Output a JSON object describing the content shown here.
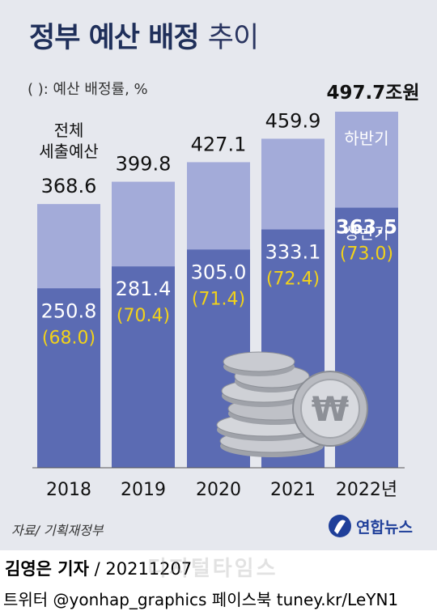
{
  "title_bold": "정부 예산 배정",
  "title_light": "추이",
  "note": "( ): 예산 배정률, %",
  "first_bar_label": [
    "전체",
    "세출예산"
  ],
  "legend": {
    "upper": "하반기",
    "lower": "상반기"
  },
  "unit_suffix": "조원",
  "source": "자료/ 기획재정부",
  "logo_text": "연합뉴스",
  "author_name": "김영은 기자",
  "author_date": "/ 20211207",
  "watermark": "디지털타임스",
  "social": "트위터 @yonhap_graphics  페이스북 tuney.kr/LeYN1",
  "colors": {
    "lower": "#5b6bb3",
    "upper": "#a3abd9",
    "rate": "#f2d21a",
    "bar_text": "#ffffff",
    "axis_text": "#111111"
  },
  "chart_data": {
    "type": "bar",
    "stacked": true,
    "categories": [
      "2018",
      "2019",
      "2020",
      "2021",
      "2022년"
    ],
    "totals": [
      368.6,
      399.8,
      427.1,
      459.9,
      497.7
    ],
    "total_labels": [
      "368.6",
      "399.8",
      "427.1",
      "459.9",
      "497.7"
    ],
    "series": [
      {
        "name": "상반기",
        "values": [
          250.8,
          281.4,
          305.0,
          333.1,
          363.5
        ],
        "labels": [
          "250.8",
          "281.4",
          "305.0",
          "333.1",
          "363.5"
        ]
      },
      {
        "name": "하반기",
        "values": [
          117.8,
          118.4,
          122.1,
          126.8,
          134.2
        ]
      }
    ],
    "rates": [
      "(68.0)",
      "(70.4)",
      "(71.4)",
      "(72.4)",
      "(73.0)"
    ],
    "ylim": [
      0,
      500
    ],
    "xlabel": "",
    "ylabel": ""
  }
}
